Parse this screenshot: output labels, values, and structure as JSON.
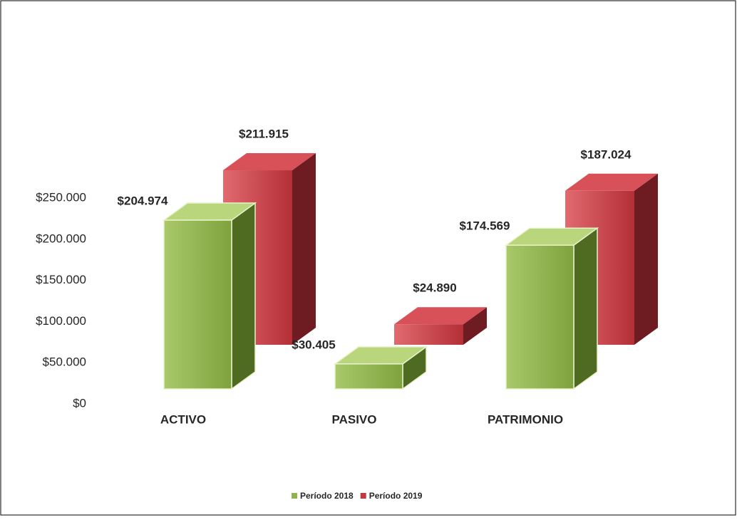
{
  "chart_data": {
    "type": "bar3d",
    "categories": [
      "ACTIVO",
      "PASIVO",
      "PATRIMONIO"
    ],
    "series": [
      {
        "name": "Período 2018",
        "color": "#8db34a",
        "values": [
          204974,
          30405,
          174569
        ],
        "value_labels": [
          "$204.974",
          "$30.405",
          "$174.569"
        ]
      },
      {
        "name": "Período 2019",
        "color": "#c0393f",
        "values": [
          211915,
          24890,
          187024
        ],
        "value_labels": [
          "$211.915",
          "$24.890",
          "$187.024"
        ]
      }
    ],
    "ylim": [
      0,
      250000
    ],
    "yticks": [
      {
        "value": 0,
        "label": "$0"
      },
      {
        "value": 50000,
        "label": "$50.000"
      },
      {
        "value": 100000,
        "label": "$100.000"
      },
      {
        "value": 150000,
        "label": "$150.000"
      },
      {
        "value": 200000,
        "label": "$200.000"
      },
      {
        "value": 250000,
        "label": "$250.000"
      }
    ],
    "legend": "bottom"
  }
}
